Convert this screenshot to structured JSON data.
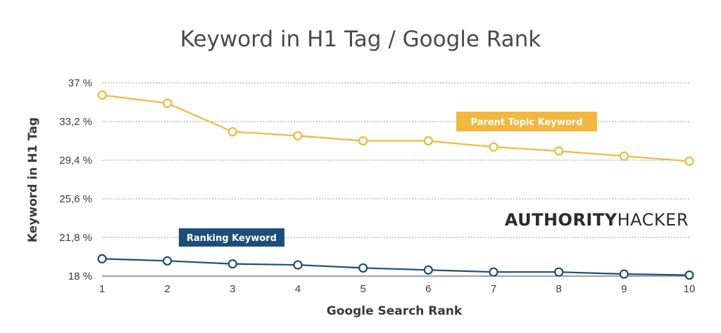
{
  "chart_data": {
    "type": "line",
    "title": "Keyword in H1 Tag / Google Rank",
    "xlabel": "Google Search Rank",
    "ylabel": "Keyword in H1 Tag",
    "x": [
      1,
      2,
      3,
      4,
      5,
      6,
      7,
      8,
      9,
      10
    ],
    "x_tick_labels": [
      "1",
      "2",
      "3",
      "4",
      "5",
      "6",
      "7",
      "8",
      "9",
      "10"
    ],
    "ylim": [
      18,
      37
    ],
    "y_ticks": [
      18,
      21.8,
      25.6,
      29.4,
      33.2,
      37
    ],
    "y_tick_labels": [
      "18 %",
      "21,8 %",
      "25,6 %",
      "29,4 %",
      "33,2 %",
      "37 %"
    ],
    "grid": true,
    "series": [
      {
        "name": "Parent Topic Keyword",
        "color": "#f2b73f",
        "values": [
          35.8,
          35.0,
          32.2,
          31.8,
          31.3,
          31.3,
          30.7,
          30.3,
          29.8,
          29.3
        ]
      },
      {
        "name": "Ranking Keyword",
        "color": "#1d4e7a",
        "values": [
          19.7,
          19.5,
          19.2,
          19.1,
          18.8,
          18.6,
          18.4,
          18.4,
          18.2,
          18.1
        ]
      }
    ]
  },
  "brand": {
    "bold": "AUTHORITY",
    "light": "HACKER"
  }
}
